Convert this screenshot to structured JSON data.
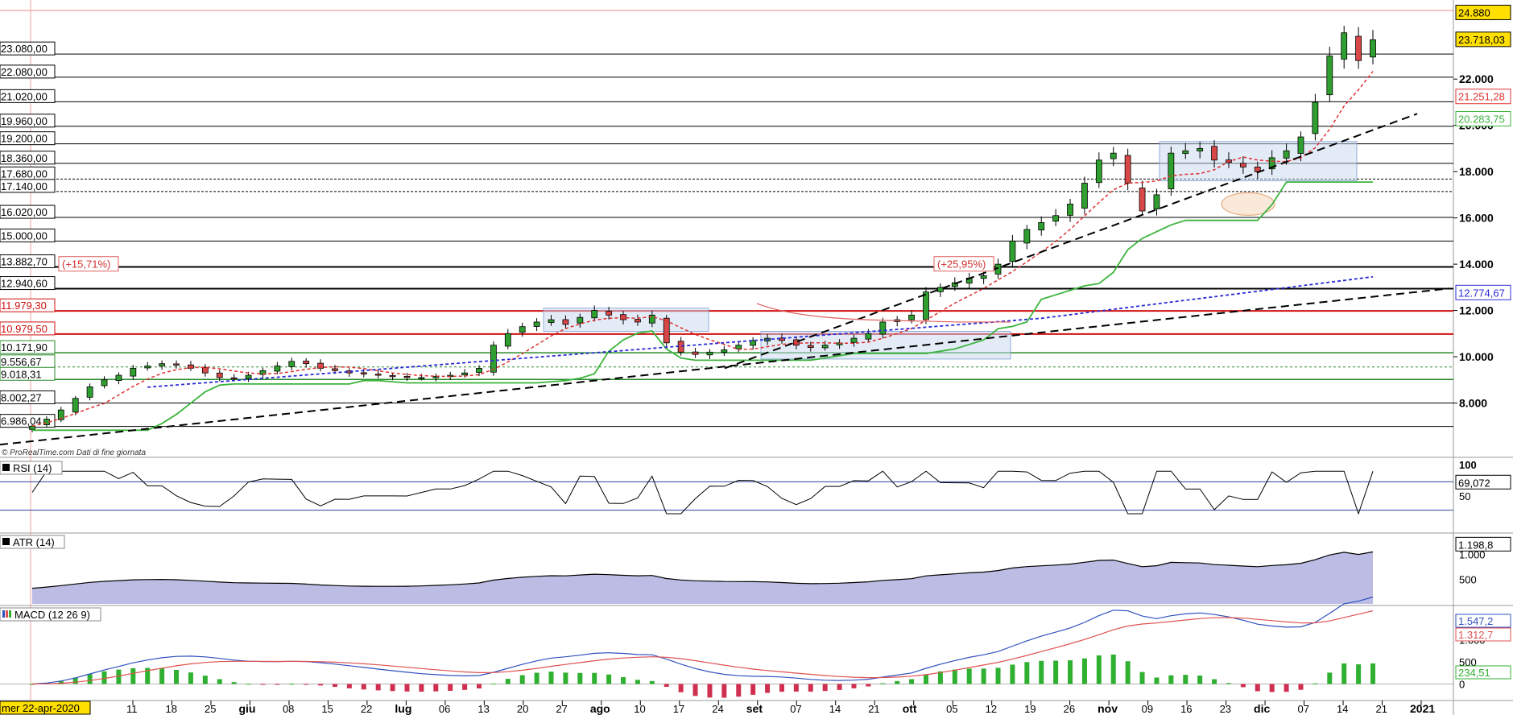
{
  "watermark": "© ProRealTime.com  Dati di fine giornata",
  "cursor_date": "mer 22-apr-2020",
  "colors": {
    "up": "#2fa02f",
    "down": "#d94848",
    "ma_red": "#e03030",
    "ma_green": "#3cb43c",
    "ma_blue": "#2b2bd8",
    "resistance": "#d01010",
    "support": "#2a8a2a",
    "box_fill": "#c8d8f0",
    "macd": "#3050c0",
    "signal": "#e05050",
    "hist_pos": "#30b030",
    "hist_neg": "#d03050",
    "price_label_bg": "#ffe000"
  },
  "chart_data": [
    {
      "type": "candlestick",
      "panel": "price",
      "x_axis": {
        "labels": [
          "11",
          "18",
          "25",
          "giu",
          "08",
          "15",
          "22",
          "lug",
          "06",
          "13",
          "20",
          "27",
          "ago",
          "10",
          "17",
          "24",
          "set",
          "07",
          "14",
          "21",
          "ott",
          "05",
          "12",
          "19",
          "26",
          "nov",
          "09",
          "16",
          "23",
          "dic",
          "07",
          "14",
          "21",
          "2021"
        ],
        "month_labels": [
          "giu",
          "lug",
          "ago",
          "set",
          "ott",
          "nov",
          "dic",
          "2021"
        ]
      },
      "y_axis": {
        "min": 6000,
        "max": 25000,
        "ticks": [
          "8.000",
          "10.000",
          "12.000",
          "14.000",
          "16.000",
          "18.000",
          "20.000",
          "22.000"
        ]
      },
      "series_closes": [
        7000,
        7300,
        7700,
        8200,
        8700,
        9000,
        9200,
        9500,
        9600,
        9700,
        9650,
        9500,
        9300,
        9100,
        9050,
        9200,
        9400,
        9600,
        9800,
        9700,
        9500,
        9400,
        9300,
        9250,
        9200,
        9150,
        9100,
        9100,
        9150,
        9200,
        9300,
        9500,
        10500,
        11000,
        11300,
        11500,
        11600,
        11400,
        11700,
        12000,
        11800,
        11600,
        11500,
        11800,
        10600,
        10200,
        10100,
        10200,
        10300,
        10500,
        10700,
        10800,
        10700,
        10500,
        10400,
        10500,
        10600,
        10800,
        11000,
        11500,
        11600,
        11800,
        12800,
        13000,
        13200,
        13400,
        13500,
        14000,
        15000,
        15500,
        15800,
        16100,
        16600,
        17500,
        18500,
        18800,
        17500,
        16300,
        17000,
        18800,
        18900,
        19000,
        18500,
        18400,
        18200,
        18000,
        18600,
        18900,
        19500,
        21000,
        23000,
        24000,
        22800,
        23700
      ],
      "current_price": "23.718,03",
      "high_marker": "24.880",
      "ma_labels": {
        "red": "21.251,28",
        "green": "20.283,75",
        "blue": "12.774,67"
      },
      "horizontal_levels": [
        {
          "value": 23080,
          "label": "23.080,00"
        },
        {
          "value": 22080,
          "label": "22.080,00"
        },
        {
          "value": 21020,
          "label": "21.020,00"
        },
        {
          "value": 19960,
          "label": "19.960,00"
        },
        {
          "value": 19200,
          "label": "19.200,00"
        },
        {
          "value": 18360,
          "label": "18.360,00"
        },
        {
          "value": 17680,
          "label": "17.680,00"
        },
        {
          "value": 17140,
          "label": "17.140,00"
        },
        {
          "value": 16020,
          "label": "16.020,00"
        },
        {
          "value": 15000,
          "label": "15.000,00"
        },
        {
          "value": 13882.7,
          "label": "13.882,70"
        },
        {
          "value": 12940.6,
          "label": "12.940,60"
        },
        {
          "value": 11979.3,
          "label": "11.979,30"
        },
        {
          "value": 10979.5,
          "label": "10.979,50"
        },
        {
          "value": 10171.9,
          "label": "10.171,90"
        },
        {
          "value": 9556.67,
          "label": "9.556,67"
        },
        {
          "value": 9018.31,
          "label": "9.018,31"
        },
        {
          "value": 8002.27,
          "label": "8.002,27"
        },
        {
          "value": 6986.04,
          "label": "6.986,04"
        }
      ],
      "annotations": [
        "(+15,71%)",
        "(+25,95%)"
      ]
    },
    {
      "type": "line",
      "panel": "rsi",
      "title": "RSI (14)",
      "y_ticks": [
        "100",
        "50"
      ],
      "current_value": "69,072"
    },
    {
      "type": "area",
      "panel": "atr",
      "title": "ATR (14)",
      "y_ticks": [
        "1.000",
        "500"
      ],
      "current_value": "1.198,8"
    },
    {
      "type": "line",
      "panel": "macd",
      "title": "MACD (12 26 9)",
      "y_ticks": [
        "1.000",
        "500",
        "0"
      ],
      "current_values": {
        "macd": "1.547,2",
        "signal": "1.312,7",
        "histogram": "234,51"
      }
    }
  ]
}
